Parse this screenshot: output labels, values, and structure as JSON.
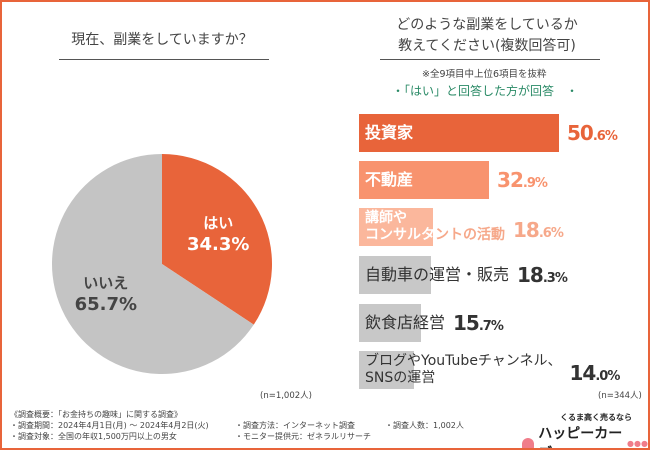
{
  "left": {
    "question": "現在、副業をしていますか？",
    "n_label": "(n=1,002人)"
  },
  "right": {
    "question_line1": "どのような副業をしているか",
    "question_line2": "教えてください(複数回答可)",
    "note": "※全9項目中上位6項目を抜粋",
    "subtitle": "・「はい」と回答した方が回答　・",
    "n_label": "(n=344人)"
  },
  "chart_data": [
    {
      "type": "pie",
      "title": "現在、副業をしていますか？",
      "slices": [
        {
          "label": "はい",
          "value": 34.3,
          "display": "34.3%",
          "color": "#e8643a"
        },
        {
          "label": "いいえ",
          "value": 65.7,
          "display": "65.7%",
          "color": "#c4c4c4"
        }
      ]
    },
    {
      "type": "bar",
      "orientation": "horizontal",
      "title": "どのような副業をしているか教えてください(複数回答可)",
      "categories": [
        "投資家",
        "不動産",
        "講師やコンサルタントの活動",
        "自動車の運営・販売",
        "飲食店経営",
        "ブログやYouTubeチャンネル、SNSの運営"
      ],
      "values": [
        50.6,
        32.9,
        18.6,
        18.3,
        15.7,
        14.0
      ],
      "colors": [
        "#e8643a",
        "#f8936e",
        "#fbb79c",
        "#c8c8c8",
        "#c8c8c8",
        "#c8c8c8"
      ],
      "text_colors": [
        "#e8643a",
        "#f8936e",
        "#f6a88a",
        "#333333",
        "#333333",
        "#333333"
      ],
      "label_lines": [
        [
          "投資家"
        ],
        [
          "不動産"
        ],
        [
          "講師や",
          "コンサルタントの活動"
        ],
        [
          "自動車の運営・販売"
        ],
        [
          "飲食店経営"
        ],
        [
          "ブログやYouTubeチャンネル、",
          "SNSの運営"
        ]
      ],
      "value_int": [
        "50",
        "32",
        "18",
        "18",
        "15",
        "14"
      ],
      "value_dec": [
        ".6%",
        ".9%",
        ".6%",
        ".3%",
        ".7%",
        ".0%"
      ],
      "xlim": [
        0,
        50.6
      ]
    }
  ],
  "footer": {
    "title": "《調査概要：「お金持ちの趣味」に関する調査》",
    "period": "・調査期間：2024年4月1日(月) ～ 2024年4月2日(火)",
    "target": "・調査対象：全国の年収1,500万円以上の男女",
    "method": "・調査方法：インターネット調査",
    "provider": "・モニター提供元：ゼネラルリサーチ",
    "count": "・調査人数：1,002人"
  },
  "logo": {
    "tagline": "くるま高く売るなら",
    "name": "ハッピーカーズ"
  }
}
